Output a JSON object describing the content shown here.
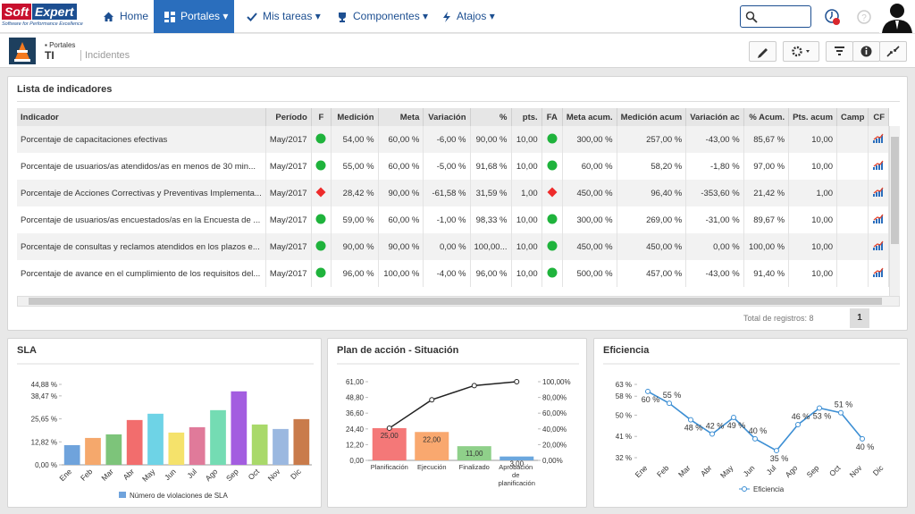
{
  "nav": {
    "logo": [
      "Soft",
      "Expert"
    ],
    "tagline": "Software for Performance Excellence",
    "items": [
      "Home",
      "Portales",
      "Mis tareas",
      "Componentes",
      "Atajos"
    ]
  },
  "breadcrumb": {
    "parent": "Portales",
    "title": "TI",
    "page": "Incidentes"
  },
  "table": {
    "title": "Lista de indicadores",
    "headers": [
      "Indicador",
      "Período",
      "F",
      "Medición",
      "Meta",
      "Variación",
      "%",
      "pts.",
      "FA",
      "Meta acum.",
      "Medición acum",
      "Variación ac",
      "% Acum.",
      "Pts. acum",
      "Camp",
      "CF"
    ],
    "rows": [
      {
        "cells": [
          "Porcentaje de capacitaciones efectivas",
          "May/2017",
          "54,00 %",
          "60,00 %",
          "-6,00 %",
          "90,00 %",
          "10,00",
          "300,00 %",
          "257,00 %",
          "-43,00 %",
          "85,67 %",
          "10,00"
        ],
        "f": {
          "shape": "circle",
          "color": "#1fb33c"
        },
        "fa": {
          "shape": "circle",
          "color": "#1fb33c"
        }
      },
      {
        "cells": [
          "Porcentaje de usuarios/as atendidos/as en menos de 30 min...",
          "May/2017",
          "55,00 %",
          "60,00 %",
          "-5,00 %",
          "91,68 %",
          "10,00",
          "60,00 %",
          "58,20 %",
          "-1,80 %",
          "97,00 %",
          "10,00"
        ],
        "f": {
          "shape": "circle",
          "color": "#1fb33c"
        },
        "fa": {
          "shape": "circle",
          "color": "#1fb33c"
        }
      },
      {
        "cells": [
          "Porcentaje de Acciones Correctivas y Preventivas Implementa...",
          "May/2017",
          "28,42 %",
          "90,00 %",
          "-61,58 %",
          "31,59 %",
          "1,00",
          "450,00 %",
          "96,40 %",
          "-353,60 %",
          "21,42 %",
          "1,00"
        ],
        "f": {
          "shape": "diamond",
          "color": "#ee2b2b"
        },
        "fa": {
          "shape": "diamond",
          "color": "#ee2b2b"
        }
      },
      {
        "cells": [
          "Porcentaje de usuarios/as encuestados/as en la Encuesta de ...",
          "May/2017",
          "59,00 %",
          "60,00 %",
          "-1,00 %",
          "98,33 %",
          "10,00",
          "300,00 %",
          "269,00 %",
          "-31,00 %",
          "89,67 %",
          "10,00"
        ],
        "f": {
          "shape": "circle",
          "color": "#1fb33c"
        },
        "fa": {
          "shape": "circle",
          "color": "#1fb33c"
        }
      },
      {
        "cells": [
          "Porcentaje de consultas y reclamos atendidos en los plazos e...",
          "May/2017",
          "90,00 %",
          "90,00 %",
          "0,00 %",
          "100,00...",
          "10,00",
          "450,00 %",
          "450,00 %",
          "0,00 %",
          "100,00 %",
          "10,00"
        ],
        "f": {
          "shape": "circle",
          "color": "#1fb33c"
        },
        "fa": {
          "shape": "circle",
          "color": "#1fb33c"
        }
      },
      {
        "cells": [
          "Porcentaje de avance en el cumplimiento de los requisitos del...",
          "May/2017",
          "96,00 %",
          "100,00 %",
          "-4,00 %",
          "96,00 %",
          "10,00",
          "500,00 %",
          "457,00 %",
          "-43,00 %",
          "91,40 %",
          "10,00"
        ],
        "f": {
          "shape": "circle",
          "color": "#1fb33c"
        },
        "fa": {
          "shape": "circle",
          "color": "#1fb33c"
        }
      }
    ],
    "total": "Total de registros: 8",
    "page": "1"
  },
  "chart_data": [
    {
      "type": "bar",
      "title": "SLA",
      "categories": [
        "Ene",
        "Feb",
        "Mar",
        "Abr",
        "May",
        "Jun",
        "Jul",
        "Ago",
        "Sep",
        "Oct",
        "Nov",
        "Dic"
      ],
      "series": [
        {
          "name": "Número de violaciones de SLA",
          "colors": [
            "#6fa3dc",
            "#f5a86c",
            "#7dc47a",
            "#f26d6d",
            "#6ed3e6",
            "#f5e26b",
            "#e07a9a",
            "#74dcb3",
            "#a35de0",
            "#a9d96a",
            "#9bb8e0",
            "#c97b4b"
          ],
          "values": [
            11,
            15,
            17,
            25,
            28.5,
            18,
            21,
            30.5,
            41,
            22.5,
            20,
            25.5
          ]
        }
      ],
      "ylim": [
        0,
        44.88
      ],
      "yticks": [
        {
          "value": 0,
          "label": "0,00 %"
        },
        {
          "value": 12.82,
          "label": "12,82 %"
        },
        {
          "value": 25.65,
          "label": "25,65 %"
        },
        {
          "value": 38.47,
          "label": "38,47 %"
        },
        {
          "value": 44.88,
          "label": "44,88 %"
        }
      ]
    },
    {
      "type": "combo",
      "title": "Plan de acción - Situación",
      "categories": [
        "Planificación",
        "Ejecución",
        "Finalizado",
        "Aprobación de planificación"
      ],
      "series": [
        {
          "type": "bar",
          "colors": [
            "#f47878",
            "#f9a86f",
            "#8fd08a",
            "#6ba7de"
          ],
          "values": [
            25,
            22,
            11,
            3
          ],
          "value_labels": [
            "25,00",
            "22,00",
            "11,00",
            "3,00"
          ]
        },
        {
          "type": "line",
          "axis": "y2",
          "color": "#222222",
          "values": [
            40.98,
            77.05,
            95.08,
            100
          ]
        }
      ],
      "ylim": [
        0,
        61
      ],
      "yticks": [
        {
          "value": 0,
          "label": "0,00"
        },
        {
          "value": 12.2,
          "label": "12,20"
        },
        {
          "value": 24.4,
          "label": "24,40"
        },
        {
          "value": 36.6,
          "label": "36,60"
        },
        {
          "value": 48.8,
          "label": "48,80"
        },
        {
          "value": 61,
          "label": "61,00"
        }
      ],
      "y2lim": [
        0,
        100
      ],
      "y2ticks": [
        {
          "value": 0,
          "label": "0,00%"
        },
        {
          "value": 20,
          "label": "20,00%"
        },
        {
          "value": 40,
          "label": "40,00%"
        },
        {
          "value": 60,
          "label": "60,00%"
        },
        {
          "value": 80,
          "label": "80,00%"
        },
        {
          "value": 100,
          "label": "100,00%"
        }
      ]
    },
    {
      "type": "line",
      "title": "Eficiencia",
      "categories": [
        "Ene",
        "Feb",
        "Mar",
        "Abr",
        "May",
        "Jun",
        "Jul",
        "Ago",
        "Sep",
        "Oct",
        "Nov",
        "Dic"
      ],
      "series": [
        {
          "name": "Eficiencia",
          "color": "#3d8fd4",
          "values": [
            60,
            55,
            48,
            42,
            49,
            40,
            35,
            46,
            53,
            51,
            40,
            null
          ],
          "value_labels": [
            "60 %",
            "55 %",
            "48 %",
            "42 %",
            "49 %",
            "40 %",
            "35 %",
            "46 %",
            "53 %",
            "51 %",
            "40 %",
            null
          ]
        }
      ],
      "ylim": [
        32,
        63
      ],
      "yticks": [
        {
          "value": 32,
          "label": "32 %"
        },
        {
          "value": 41,
          "label": "41 %"
        },
        {
          "value": 50,
          "label": "50 %"
        },
        {
          "value": 58,
          "label": "58 %"
        },
        {
          "value": 63,
          "label": "63 %"
        }
      ]
    }
  ]
}
